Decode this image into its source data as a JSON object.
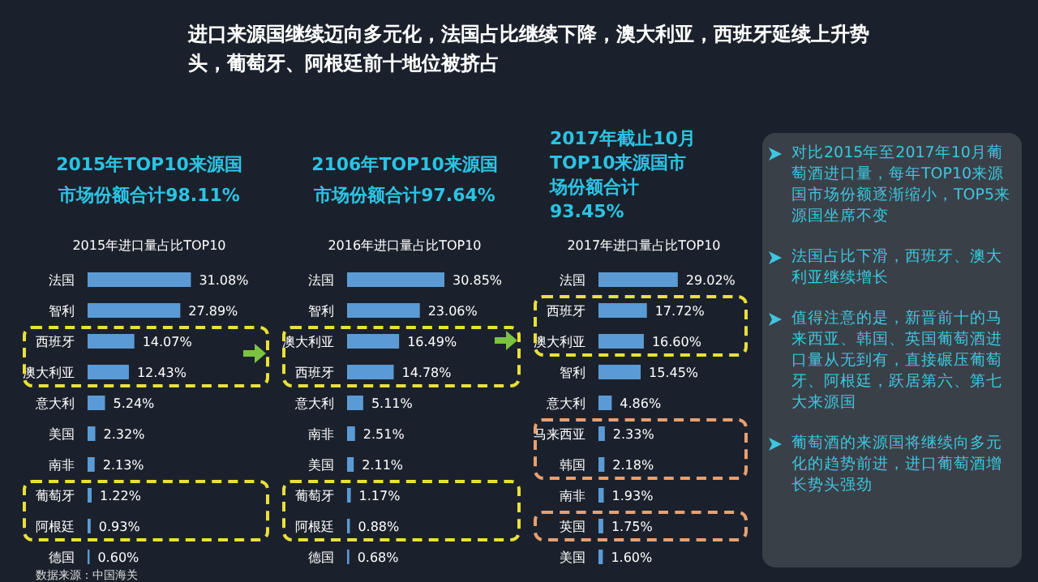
{
  "chart_data": [
    {
      "type": "bar",
      "orientation": "horizontal",
      "subtitle": "2015年TOP10来源国市场份额合计98.11%",
      "title": "2015年进口量占比TOP10",
      "categories": [
        "法国",
        "智利",
        "西班牙",
        "澳大利亚",
        "意大利",
        "美国",
        "南非",
        "葡萄牙",
        "阿根廷",
        "德国"
      ],
      "color": "#5b9bd5",
      "values": [
        31.08,
        27.89,
        14.07,
        12.43,
        5.24,
        2.32,
        2.13,
        1.22,
        0.93,
        0.6
      ],
      "value_labels": [
        "31.08%",
        "27.89%",
        "14.07%",
        "12.43%",
        "5.24%",
        "2.32%",
        "2.13%",
        "1.22%",
        "0.93%",
        "0.60%"
      ],
      "annotations": [
        "数据来源：中国海关"
      ]
    },
    {
      "type": "bar",
      "orientation": "horizontal",
      "subtitle": "2106年TOP10来源国市场份额合计97.64%",
      "title": "2016年进口量占比TOP10",
      "categories": [
        "法国",
        "智利",
        "澳大利亚",
        "西班牙",
        "意大利",
        "南非",
        "美国",
        "葡萄牙",
        "阿根廷",
        "德国"
      ],
      "color": "#5b9bd5",
      "values": [
        30.85,
        23.06,
        16.49,
        14.78,
        5.11,
        2.51,
        2.11,
        1.17,
        0.88,
        0.68
      ],
      "value_labels": [
        "30.85%",
        "23.06%",
        "16.49%",
        "14.78%",
        "5.11%",
        "2.51%",
        "2.11%",
        "1.17%",
        "0.88%",
        "0.68%"
      ]
    },
    {
      "type": "bar",
      "orientation": "horizontal",
      "subtitle": "2017年截止10月TOP10来源国市场份额合计93.45%",
      "title": "2017年进口量占比TOP10",
      "categories": [
        "法国",
        "西班牙",
        "澳大利亚",
        "智利",
        "意大利",
        "马来西亚",
        "韩国",
        "南非",
        "英国",
        "美国"
      ],
      "color": "#5b9bd5",
      "values": [
        29.02,
        17.72,
        16.6,
        15.45,
        4.86,
        2.33,
        2.18,
        1.93,
        1.75,
        1.6
      ],
      "value_labels": [
        "29.02%",
        "17.72%",
        "16.60%",
        "15.45%",
        "4.86%",
        "2.33%",
        "2.18%",
        "1.93%",
        "1.75%",
        "1.60%"
      ]
    },
    {
      "type": "other",
      "title": "进口来源国继续迈向多元化，法国占比继续下降，澳大利亚，西班牙延续上升势头，葡萄牙、阿根廷前十地位被挤占",
      "annotations": [
        "对比2015年至2017年10月葡萄酒进口量，每年TOP10来源国市场份额逐渐缩小，TOP5来源国坐席不变",
        "法国占比下滑，西班牙、澳大利亚继续增长",
        "值得注意的是，新晋前十的马来西亚、韩国、英国葡萄酒进口量从无到有，直接碾压葡萄牙、阿根廷，跃居第六、第七大来源国",
        "葡萄酒的来源国将继续向多元化的趋势前进，进口葡萄酒增长势头强劲"
      ]
    }
  ]
}
